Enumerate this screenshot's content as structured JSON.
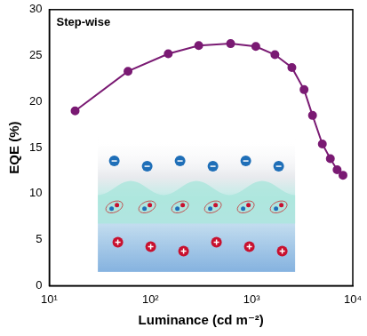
{
  "chart_data": {
    "type": "line",
    "annotation": "Step-wise",
    "x_label": "Luminance (cd m⁻²)",
    "y_label": "EQE (%)",
    "log": "x",
    "grid": false,
    "marker": "circle",
    "line_style": "solid",
    "series": [
      {
        "name": "Step-wise",
        "color": "#7a1a73",
        "x": [
          18,
          60,
          150,
          300,
          620,
          1100,
          1700,
          2500,
          3300,
          4000,
          5000,
          6000,
          7000,
          8000
        ],
        "values": [
          19.0,
          23.3,
          25.2,
          26.1,
          26.3,
          26.0,
          25.1,
          23.7,
          21.3,
          18.5,
          15.4,
          13.8,
          12.6,
          12.0
        ]
      }
    ],
    "xlim": [
      10,
      10000
    ],
    "xticks": [
      {
        "value": 10,
        "label": "10¹"
      },
      {
        "value": 100,
        "label": "10²"
      },
      {
        "value": 1000,
        "label": "10³"
      },
      {
        "value": 10000,
        "label": "10⁴"
      }
    ],
    "ylim": [
      0,
      30
    ],
    "yticks": [
      0,
      5,
      10,
      15,
      20,
      25,
      30
    ]
  }
}
